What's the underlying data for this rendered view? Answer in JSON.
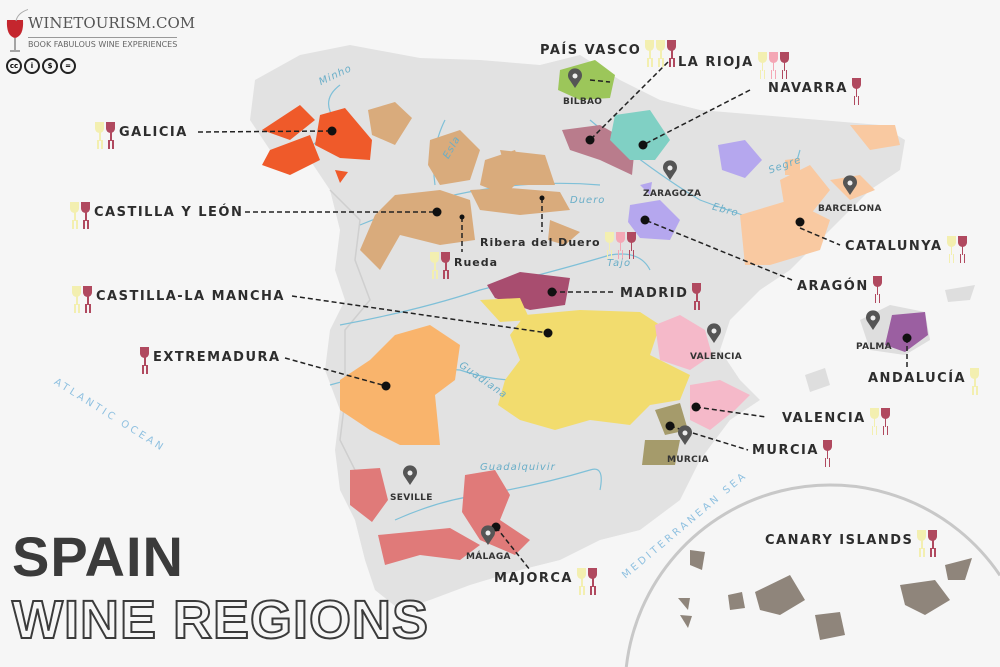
{
  "logo": {
    "name": "WINETOURISM.COM",
    "tagline": "BOOK FABULOUS WINE EXPERIENCES",
    "license_icons": [
      "cc",
      "by",
      "nc",
      "nd"
    ],
    "license_text": [
      "cc",
      "i",
      "$",
      "="
    ]
  },
  "title": {
    "line1": "SPAIN",
    "line2": "WINE REGIONS"
  },
  "colors": {
    "white": "#f3efb0",
    "rose": "#f4a7b5",
    "red": "#b0495f",
    "land": "#e2e2e2",
    "river": "#7fc0d8"
  },
  "regions": [
    {
      "name": "GALICIA",
      "color": "#ef5a2a",
      "wines": [
        "white",
        "red"
      ]
    },
    {
      "name": "CASTILLA Y LEÓN",
      "color": "#d9ab7c",
      "wines": [
        "white",
        "red"
      ]
    },
    {
      "name": "Ribera del Duero",
      "color": "#d9ab7c",
      "wines": [
        "white",
        "rose",
        "red"
      ]
    },
    {
      "name": "Rueda",
      "color": "#d9ab7c",
      "wines": [
        "white",
        "red"
      ]
    },
    {
      "name": "PAÍS VASCO",
      "color": "#9cc65a",
      "wines": [
        "white",
        "white",
        "red"
      ]
    },
    {
      "name": "LA RIOJA",
      "color": "#b97c8c",
      "wines": [
        "white",
        "rose",
        "red"
      ]
    },
    {
      "name": "NAVARRA",
      "color": "#80d0c4",
      "wines": [
        "red"
      ]
    },
    {
      "name": "ARAGÓN",
      "color": "#b5a7ee",
      "wines": [
        "red"
      ]
    },
    {
      "name": "CATALUNYA",
      "color": "#f9c9a1",
      "wines": [
        "white",
        "red"
      ]
    },
    {
      "name": "MADRID",
      "color": "#a84d6f",
      "wines": [
        "red"
      ]
    },
    {
      "name": "CASTILLA-LA MANCHA",
      "color": "#f2dc6e",
      "wines": [
        "white",
        "red"
      ]
    },
    {
      "name": "EXTREMADURA",
      "color": "#f9b46c",
      "wines": [
        "red"
      ]
    },
    {
      "name": "VALENCIA",
      "color": "#f5b9c9",
      "wines": [
        "white",
        "red"
      ]
    },
    {
      "name": "MURCIA",
      "color": "#a59b6b",
      "wines": [
        "red"
      ]
    },
    {
      "name": "ANDALUCÍA",
      "color": "#e07a79",
      "wines": [
        "white"
      ]
    },
    {
      "name": "MAJORCA",
      "color": "#9b5fa1",
      "wines": [
        "white",
        "red"
      ]
    },
    {
      "name": "CANARY ISLANDS",
      "color": "#8f857b",
      "wines": [
        "white",
        "red"
      ]
    }
  ],
  "cities": [
    "BILBAO",
    "ZARAGOZA",
    "BARCELONA",
    "VALENCIA",
    "MURCIA",
    "SEVILLE",
    "MÁLAGA",
    "PALMA"
  ],
  "rivers": [
    "Minho",
    "Esla",
    "Duero",
    "Ebro",
    "Segre",
    "Tajo",
    "Guadiana",
    "Guadalquivir"
  ],
  "seas": [
    "ATLANTIC OCEAN",
    "MEDITERRANEAN SEA"
  ]
}
